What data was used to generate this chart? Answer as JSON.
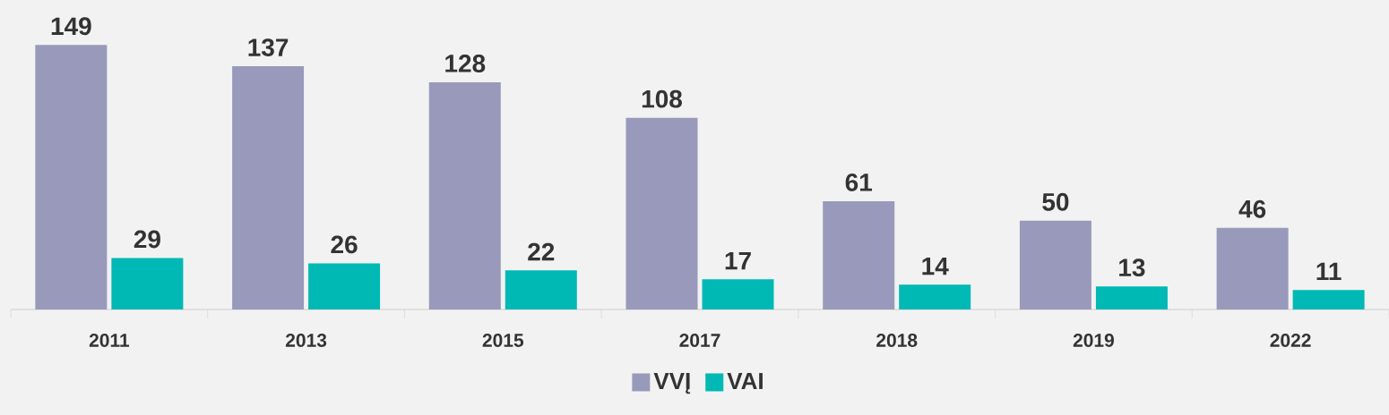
{
  "chart_data": {
    "type": "bar",
    "categories": [
      "2011",
      "2013",
      "2015",
      "2017",
      "2018",
      "2019",
      "2022"
    ],
    "series": [
      {
        "name": "VVĮ",
        "color": "#9999bb",
        "values": [
          149,
          137,
          128,
          108,
          61,
          50,
          46
        ]
      },
      {
        "name": "VAI",
        "color": "#00b8b4",
        "values": [
          29,
          26,
          22,
          17,
          14,
          13,
          11
        ]
      }
    ],
    "data_labels": true,
    "legend": "bottom"
  }
}
